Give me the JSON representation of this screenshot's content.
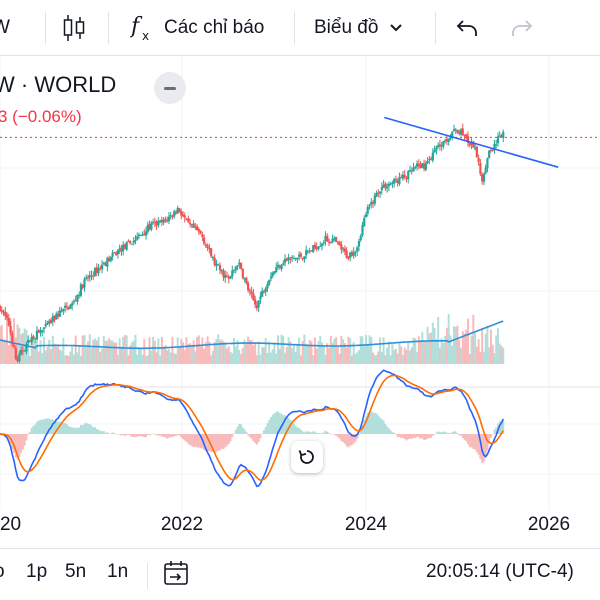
{
  "toolbar": {
    "symbol_partial": "W",
    "indicators_label": "Các chỉ báo",
    "chart_type_label": "Biểu đồ"
  },
  "legend": {
    "symbol": "W · WORLD",
    "change": "3 (−0.06%)"
  },
  "colors": {
    "up": "#26a69a",
    "down": "#ef5350",
    "trendline": "#2962ff",
    "price_line": "#f23645",
    "ma": "#2f8fd8",
    "macd": "#2962ff",
    "signal": "#ff6d00"
  },
  "chart_data": {
    "type": "candlestick",
    "x_axis_ticks": [
      "2020",
      "2022",
      "2024",
      "2026"
    ],
    "close_series": [
      [
        2020.0,
        2395
      ],
      [
        2020.1,
        2250
      ],
      [
        2020.18,
        1950
      ],
      [
        2020.25,
        2050
      ],
      [
        2020.35,
        2150
      ],
      [
        2020.5,
        2230
      ],
      [
        2020.65,
        2350
      ],
      [
        2020.8,
        2420
      ],
      [
        2020.92,
        2600
      ],
      [
        2021.1,
        2720
      ],
      [
        2021.3,
        2850
      ],
      [
        2021.5,
        2950
      ],
      [
        2021.65,
        3050
      ],
      [
        2021.8,
        3080
      ],
      [
        2021.95,
        3190
      ],
      [
        2022.05,
        3060
      ],
      [
        2022.2,
        2980
      ],
      [
        2022.35,
        2740
      ],
      [
        2022.5,
        2610
      ],
      [
        2022.6,
        2760
      ],
      [
        2022.72,
        2520
      ],
      [
        2022.8,
        2400
      ],
      [
        2022.95,
        2650
      ],
      [
        2023.1,
        2770
      ],
      [
        2023.25,
        2790
      ],
      [
        2023.4,
        2850
      ],
      [
        2023.55,
        2940
      ],
      [
        2023.65,
        2930
      ],
      [
        2023.8,
        2800
      ],
      [
        2023.9,
        2880
      ],
      [
        2024.0,
        3150
      ],
      [
        2024.15,
        3350
      ],
      [
        2024.3,
        3400
      ],
      [
        2024.45,
        3450
      ],
      [
        2024.55,
        3520
      ],
      [
        2024.65,
        3540
      ],
      [
        2024.8,
        3700
      ],
      [
        2024.92,
        3780
      ],
      [
        2025.0,
        3820
      ],
      [
        2025.05,
        3800
      ],
      [
        2025.12,
        3720
      ],
      [
        2025.2,
        3650
      ],
      [
        2025.27,
        3420
      ],
      [
        2025.33,
        3620
      ],
      [
        2025.42,
        3720
      ],
      [
        2025.5,
        3790
      ]
    ],
    "trendline": [
      [
        2024.2,
        3920
      ],
      [
        2026.1,
        3520
      ]
    ],
    "last_price_line": 3760,
    "indicators": [
      "Volume MA",
      "MACD"
    ]
  },
  "reset_icon": "reset-rotate-icon",
  "bottom": {
    "range_partial": "o",
    "range_1y": "1p",
    "range_5y": "5n",
    "range_all": "1n",
    "time": "20:05:14 (UTC-4)"
  }
}
